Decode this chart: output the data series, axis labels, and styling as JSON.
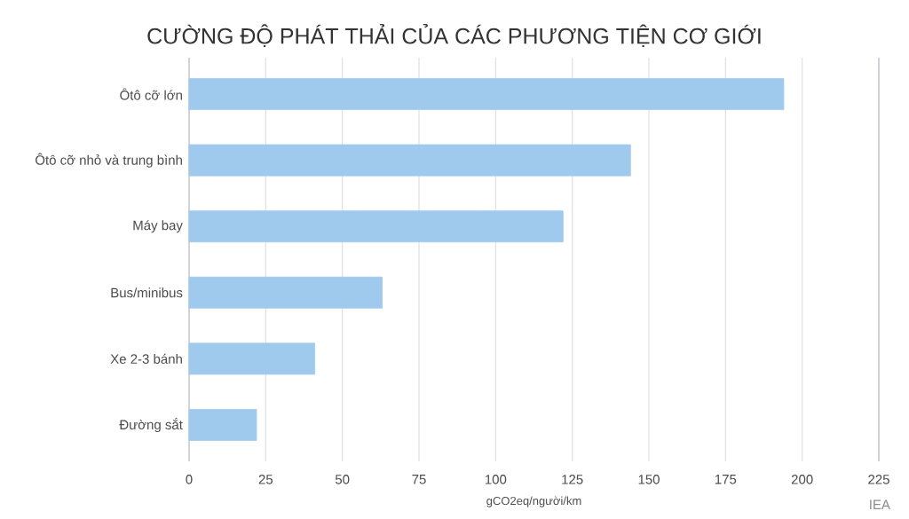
{
  "chart_data": {
    "type": "bar",
    "orientation": "horizontal",
    "title": "CƯỜNG ĐỘ PHÁT THẢI CỦA CÁC PHƯƠNG TIỆN CƠ GIỚI",
    "categories": [
      "Ôtô cỡ lớn",
      "Ôtô cỡ nhỏ và trung bình",
      "Máy bay",
      "Bus/minibus",
      "Xe 2-3 bánh",
      "Đường sắt"
    ],
    "values": [
      194,
      144,
      122,
      63,
      41,
      22
    ],
    "color": "#a0c9ee",
    "xlabel": "gCO2eq/người/km",
    "xlim": [
      0,
      225
    ],
    "xticks": [
      0,
      25,
      50,
      75,
      100,
      125,
      150,
      175,
      200,
      225
    ],
    "grid": "x",
    "annotations": [
      "IEA"
    ]
  }
}
